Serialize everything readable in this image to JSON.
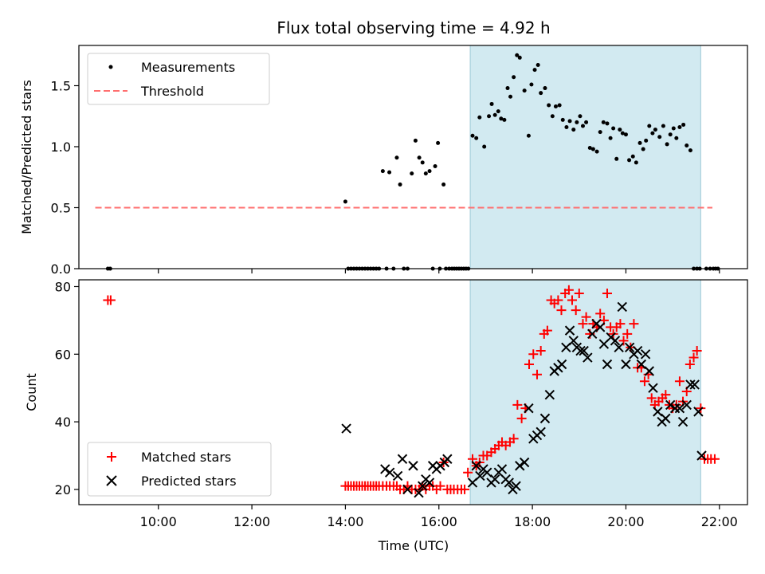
{
  "title": "Flux total observing time = 4.92 h",
  "chart_data": [
    {
      "type": "scatter",
      "ylabel": "Matched/Predicted stars",
      "xlim": [
        8.3,
        22.6
      ],
      "ylim": [
        0,
        1.83
      ],
      "yticks": [
        0.0,
        0.5,
        1.0,
        1.5
      ],
      "ytick_labels": [
        "0.0",
        "0.5",
        "1.0",
        "1.5"
      ],
      "shaded_region": {
        "x": [
          16.67,
          21.6
        ],
        "color": "#add8e6"
      },
      "threshold": {
        "name": "Threshold",
        "y": 0.5,
        "x": [
          8.65,
          21.85
        ],
        "color": "#ff6f6f",
        "style": "dashed"
      },
      "legend": {
        "placement": "upper left",
        "entries": [
          "Measurements",
          "Threshold"
        ]
      },
      "series": [
        {
          "name": "Measurements",
          "marker": "dot",
          "color": "#000000",
          "x": [
            8.92,
            8.97,
            14.0,
            14.06,
            14.12,
            14.18,
            14.24,
            14.3,
            14.36,
            14.42,
            14.48,
            14.54,
            14.6,
            14.66,
            14.72,
            14.8,
            14.88,
            14.94,
            15.03,
            15.1,
            15.17,
            15.25,
            15.33,
            15.42,
            15.5,
            15.58,
            15.65,
            15.72,
            15.8,
            15.87,
            15.92,
            15.98,
            16.02,
            16.1,
            16.15,
            16.22,
            16.28,
            16.33,
            16.38,
            16.43,
            16.48,
            16.53,
            16.58,
            16.63,
            16.72,
            16.8,
            16.87,
            16.97,
            17.07,
            17.13,
            17.2,
            17.27,
            17.33,
            17.4,
            17.47,
            17.53,
            17.6,
            17.67,
            17.73,
            17.83,
            17.92,
            17.98,
            18.05,
            18.12,
            18.18,
            18.27,
            18.35,
            18.43,
            18.5,
            18.58,
            18.65,
            18.73,
            18.8,
            18.88,
            18.95,
            19.02,
            19.08,
            19.15,
            19.23,
            19.3,
            19.38,
            19.45,
            19.52,
            19.6,
            19.67,
            19.73,
            19.8,
            19.87,
            19.93,
            20.0,
            20.07,
            20.15,
            20.22,
            20.3,
            20.37,
            20.43,
            20.5,
            20.57,
            20.63,
            20.72,
            20.8,
            20.88,
            20.95,
            21.02,
            21.08,
            21.15,
            21.23,
            21.3,
            21.38,
            21.45,
            21.52,
            21.58,
            21.72,
            21.8,
            21.87,
            21.92,
            21.97
          ],
          "y": [
            0,
            0,
            0.55,
            0,
            0,
            0,
            0,
            0,
            0,
            0,
            0,
            0,
            0,
            0,
            0,
            0.8,
            0,
            0.79,
            0,
            0.91,
            0.69,
            0,
            0,
            0.78,
            1.05,
            0.91,
            0.87,
            0.78,
            0.8,
            0,
            0.84,
            1.03,
            0,
            0.69,
            0,
            0,
            0,
            0,
            0,
            0,
            0,
            0,
            0,
            0,
            1.09,
            1.07,
            1.24,
            1.0,
            1.25,
            1.35,
            1.26,
            1.29,
            1.23,
            1.22,
            1.48,
            1.41,
            1.57,
            1.75,
            1.73,
            1.46,
            1.09,
            1.51,
            1.63,
            1.67,
            1.44,
            1.48,
            1.34,
            1.25,
            1.33,
            1.34,
            1.22,
            1.16,
            1.21,
            1.14,
            1.2,
            1.25,
            1.17,
            1.2,
            0.99,
            0.98,
            0.96,
            1.12,
            1.2,
            1.19,
            1.07,
            1.15,
            0.9,
            1.14,
            1.11,
            1.1,
            0.89,
            0.92,
            0.87,
            1.03,
            0.98,
            1.05,
            1.17,
            1.11,
            1.14,
            1.08,
            1.17,
            1.02,
            1.1,
            1.15,
            1.07,
            1.16,
            1.18,
            1.01,
            0.97,
            0,
            0,
            0,
            0,
            0,
            0,
            0,
            0
          ]
        }
      ]
    },
    {
      "type": "scatter",
      "xlabel": "Time (UTC)",
      "ylabel": "Count",
      "xlim": [
        8.3,
        22.6
      ],
      "ylim": [
        15.5,
        82
      ],
      "yticks": [
        20,
        40,
        60,
        80
      ],
      "ytick_labels": [
        "20",
        "40",
        "60",
        "80"
      ],
      "xticks": [
        10,
        12,
        14,
        16,
        18,
        20,
        22
      ],
      "xtick_labels": [
        "10:00",
        "12:00",
        "14:00",
        "16:00",
        "18:00",
        "20:00",
        "22:00"
      ],
      "shaded_region": {
        "x": [
          16.67,
          21.6
        ],
        "color": "#add8e6"
      },
      "legend": {
        "placement": "lower left",
        "entries": [
          "Matched stars",
          "Predicted stars"
        ]
      },
      "series": [
        {
          "name": "Matched stars",
          "marker": "plus",
          "color": "#ff0000",
          "x": [
            8.92,
            8.98,
            14.0,
            14.06,
            14.12,
            14.18,
            14.24,
            14.3,
            14.36,
            14.42,
            14.48,
            14.54,
            14.6,
            14.66,
            14.72,
            14.8,
            14.88,
            14.95,
            15.03,
            15.1,
            15.17,
            15.25,
            15.33,
            15.42,
            15.5,
            15.58,
            15.65,
            15.72,
            15.8,
            15.87,
            15.95,
            16.03,
            16.1,
            16.18,
            16.25,
            16.32,
            16.4,
            16.48,
            16.55,
            16.62,
            16.72,
            16.8,
            16.87,
            16.95,
            17.03,
            17.12,
            17.2,
            17.28,
            17.35,
            17.43,
            17.52,
            17.6,
            17.68,
            17.77,
            17.85,
            17.93,
            18.02,
            18.1,
            18.18,
            18.25,
            18.32,
            18.4,
            18.47,
            18.55,
            18.62,
            18.7,
            18.78,
            18.85,
            18.93,
            19.0,
            19.08,
            19.15,
            19.23,
            19.3,
            19.38,
            19.45,
            19.53,
            19.6,
            19.67,
            19.73,
            19.8,
            19.88,
            19.95,
            20.03,
            20.1,
            20.17,
            20.25,
            20.33,
            20.4,
            20.48,
            20.55,
            20.62,
            20.7,
            20.78,
            20.85,
            20.93,
            21.0,
            21.08,
            21.15,
            21.22,
            21.3,
            21.37,
            21.45,
            21.52,
            21.6,
            21.68,
            21.75,
            21.82,
            21.9
          ],
          "y": [
            76,
            76,
            21,
            21,
            21,
            21,
            21,
            21,
            21,
            21,
            21,
            21,
            21,
            21,
            21,
            21,
            21,
            21,
            21,
            21,
            20,
            20,
            21,
            20,
            20,
            20,
            21,
            20,
            21,
            21,
            20,
            21,
            28,
            20,
            20,
            20,
            20,
            20,
            20,
            25,
            29,
            27,
            28,
            30,
            30,
            31,
            32,
            33,
            34,
            33,
            34,
            35,
            45,
            41,
            44,
            57,
            60,
            54,
            61,
            66,
            67,
            76,
            75,
            76,
            73,
            78,
            79,
            76,
            73,
            78,
            69,
            71,
            66,
            69,
            68,
            72,
            70,
            78,
            68,
            66,
            68,
            69,
            64,
            66,
            62,
            69,
            56,
            56,
            52,
            54,
            47,
            45,
            46,
            47,
            48,
            45,
            44,
            45,
            52,
            46,
            49,
            57,
            59,
            61,
            44,
            29,
            29,
            29,
            29
          ]
        },
        {
          "name": "Predicted stars",
          "marker": "x",
          "color": "#000000",
          "x": [
            14.02,
            14.85,
            14.95,
            15.12,
            15.22,
            15.33,
            15.45,
            15.57,
            15.65,
            15.72,
            15.8,
            15.87,
            15.95,
            16.03,
            16.12,
            16.18,
            16.72,
            16.8,
            16.88,
            16.95,
            17.03,
            17.12,
            17.2,
            17.28,
            17.35,
            17.43,
            17.5,
            17.58,
            17.65,
            17.73,
            17.83,
            17.92,
            18.02,
            18.1,
            18.18,
            18.27,
            18.37,
            18.47,
            18.55,
            18.63,
            18.72,
            18.8,
            18.88,
            18.95,
            19.03,
            19.1,
            19.18,
            19.28,
            19.37,
            19.45,
            19.53,
            19.6,
            19.68,
            19.77,
            19.85,
            19.92,
            20.0,
            20.08,
            20.17,
            20.25,
            20.33,
            20.42,
            20.5,
            20.58,
            20.68,
            20.77,
            20.85,
            20.95,
            21.05,
            21.15,
            21.22,
            21.3,
            21.38,
            21.47,
            21.55,
            21.62
          ],
          "y": [
            38,
            26,
            25,
            24,
            29,
            20,
            27,
            19,
            21,
            23,
            22,
            27,
            26,
            27,
            28,
            29,
            22,
            27,
            24,
            26,
            25,
            22,
            23,
            25,
            26,
            23,
            22,
            20,
            21,
            27,
            28,
            44,
            35,
            36,
            37,
            41,
            48,
            55,
            56,
            57,
            62,
            67,
            64,
            62,
            61,
            61,
            59,
            66,
            69,
            68,
            63,
            57,
            65,
            64,
            62,
            74,
            57,
            62,
            60,
            61,
            57,
            60,
            55,
            50,
            43,
            40,
            41,
            45,
            44,
            44,
            40,
            45,
            51,
            51,
            43,
            30
          ]
        }
      ]
    }
  ]
}
